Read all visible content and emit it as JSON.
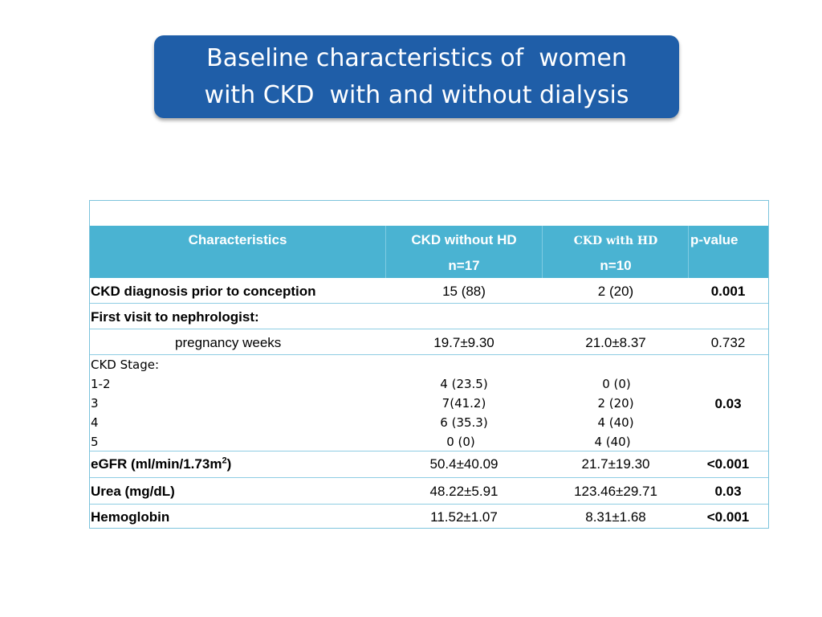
{
  "title": {
    "line1": "Baseline characteristics of  women",
    "line2": "with CKD  with and without dialysis"
  },
  "table": {
    "header": {
      "characteristics": "Characteristics",
      "col1_name": "CKD without HD",
      "col1_n": "n=17",
      "col2_name": "CKD with HD",
      "col2_n": "n=10",
      "pvalue": "p-value"
    },
    "rows": {
      "ckd_diagnosis": {
        "label": "CKD diagnosis prior to conception",
        "col1": "15 (88)",
        "col2": "2 (20)",
        "p": "0.001"
      },
      "first_visit": {
        "label": "First visit to nephrologist:"
      },
      "pregnancy_weeks": {
        "label": "pregnancy weeks",
        "col1": "19.7±9.30",
        "col2": "21.0±8.37",
        "p": "0.732"
      },
      "ckd_stage": {
        "label": "CKD Stage:",
        "stages": [
          "1-2",
          "3",
          "4",
          "5"
        ],
        "col1": [
          "4 (23.5)",
          "7(41.2)",
          "6 (35.3)",
          "0 (0)"
        ],
        "col2": [
          "0 (0)",
          "2 (20)",
          "4 (40)",
          "4 (40)"
        ],
        "p": "0.03"
      },
      "egfr": {
        "label": "eGFR (ml/min/1.73m",
        "label_sup": "2",
        "label_end": ")",
        "col1": "50.4±40.09",
        "col2": "21.7±19.30",
        "p": "<0.001"
      },
      "urea": {
        "label": "Urea (mg/dL)",
        "col1": "48.22±5.91",
        "col2": "123.46±29.71",
        "p": "0.03"
      },
      "hemoglobin": {
        "label": "Hemoglobin",
        "col1": "11.52±1.07",
        "col2": "8.31±1.68",
        "p": "<0.001"
      }
    }
  },
  "colors": {
    "title_bg": "#1f5ea8",
    "header_bg": "#4ab3d2",
    "border": "#8fcde3"
  }
}
